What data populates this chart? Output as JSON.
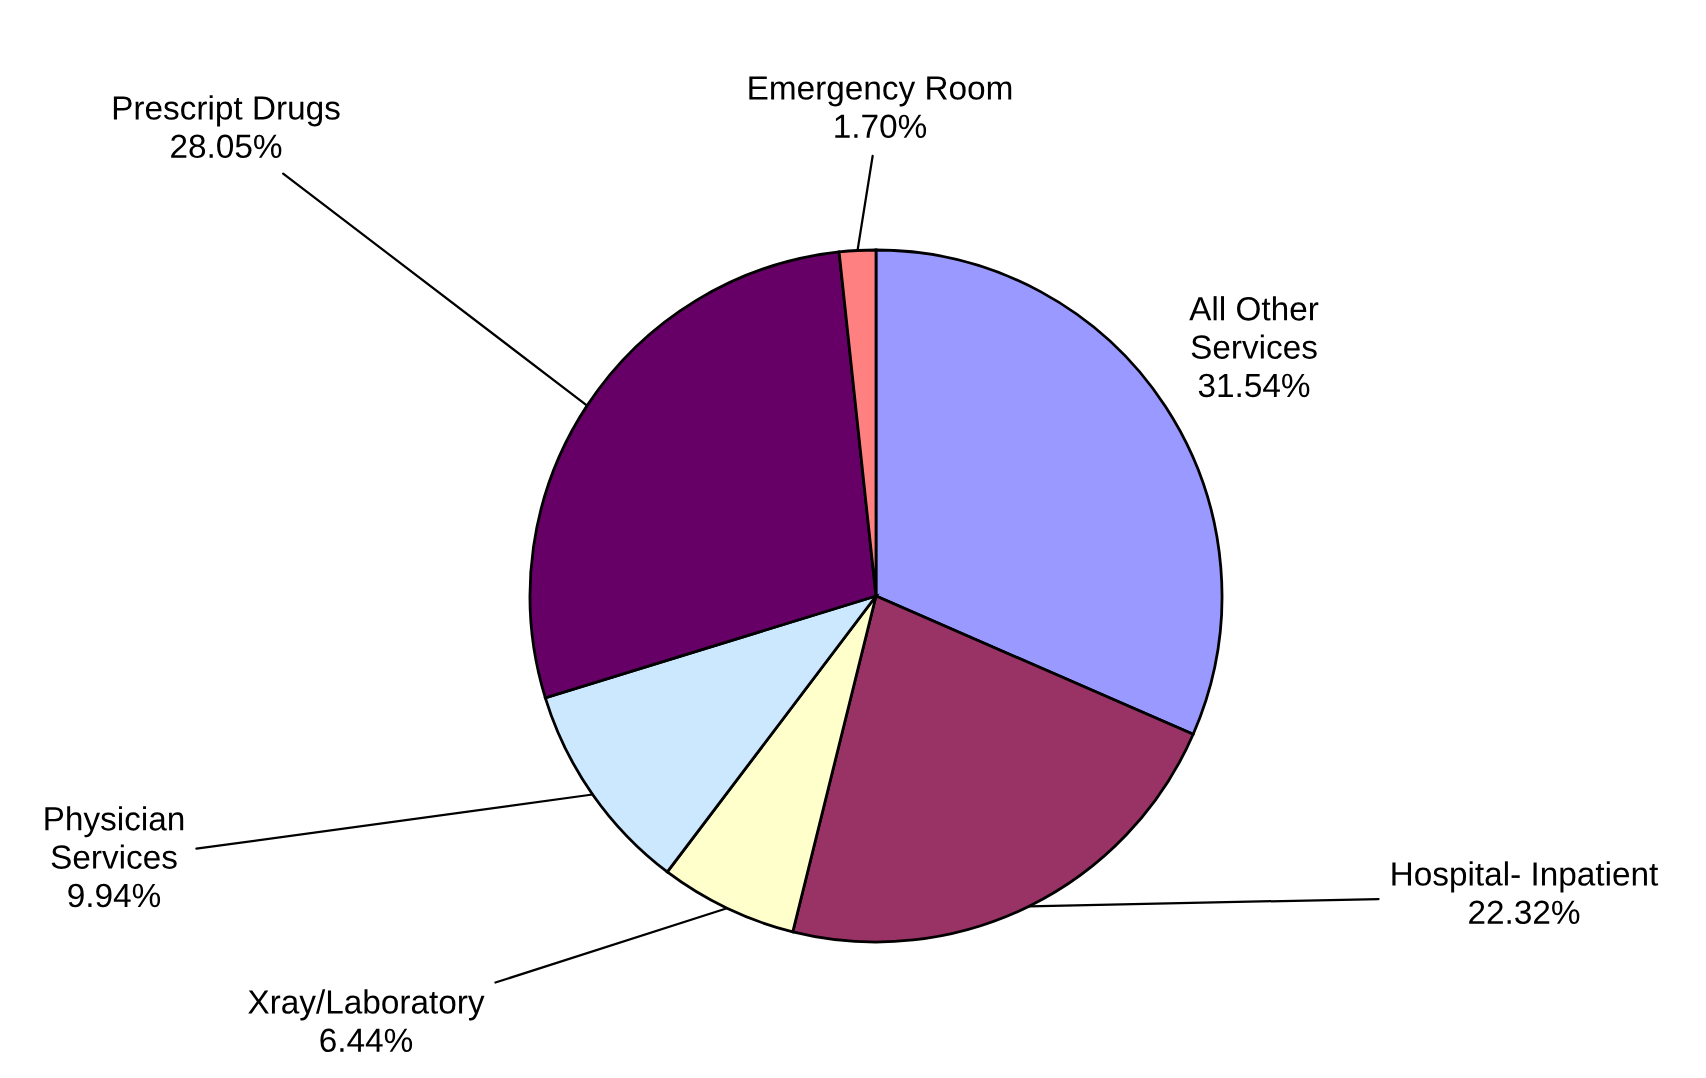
{
  "chart_data": {
    "type": "pie",
    "categories": [
      "All Other\nServices",
      "Hospital- Inpatient",
      "Xray/Laboratory",
      "Physician\nServices",
      "Prescript Drugs",
      "Emergency Room"
    ],
    "values": [
      31.54,
      22.32,
      6.44,
      9.94,
      28.05,
      1.7
    ],
    "colors": [
      "#9999ff",
      "#993366",
      "#ffffcc",
      "#cce8ff",
      "#660066",
      "#ff8080"
    ],
    "value_labels": [
      "31.54%",
      "22.32%",
      "6.44%",
      "9.94%",
      "28.05%",
      "1.70%"
    ],
    "legend": false
  }
}
